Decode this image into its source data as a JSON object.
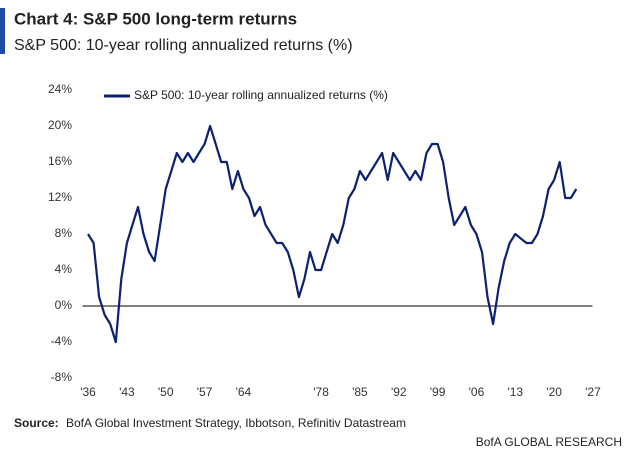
{
  "chart_data": {
    "type": "line",
    "title": "Chart 4: S&P 500 long-term returns",
    "subtitle": "S&P 500: 10-year rolling annualized returns (%)",
    "source_label": "Source:",
    "source": "BofA Global Investment Strategy, Ibbotson, Refinitiv Datastream",
    "footer": "BofA GLOBAL RESEARCH",
    "legend": "upper left",
    "x": [
      1936,
      1937,
      1938,
      1939,
      1940,
      1941,
      1942,
      1943,
      1944,
      1945,
      1946,
      1947,
      1948,
      1949,
      1950,
      1951,
      1952,
      1953,
      1954,
      1955,
      1956,
      1957,
      1958,
      1959,
      1960,
      1961,
      1962,
      1963,
      1964,
      1965,
      1966,
      1967,
      1968,
      1969,
      1970,
      1971,
      1972,
      1973,
      1974,
      1975,
      1976,
      1977,
      1978,
      1979,
      1980,
      1981,
      1982,
      1983,
      1984,
      1985,
      1986,
      1987,
      1988,
      1989,
      1990,
      1991,
      1992,
      1993,
      1994,
      1995,
      1996,
      1997,
      1998,
      1999,
      2000,
      2001,
      2002,
      2003,
      2004,
      2005,
      2006,
      2007,
      2008,
      2009,
      2010,
      2011,
      2012,
      2013,
      2014,
      2015,
      2016,
      2017,
      2018,
      2019,
      2020,
      2021,
      2022,
      2023,
      2024
    ],
    "series": [
      {
        "name": "S&P 500: 10-year rolling annualized returns (%)",
        "color": "#0c2270",
        "values": [
          8,
          7,
          1,
          -1,
          -2,
          -4,
          3,
          7,
          9,
          11,
          8,
          6,
          5,
          9,
          13,
          15,
          17,
          16,
          17,
          16,
          17,
          18,
          20,
          18,
          16,
          16,
          13,
          15,
          13,
          12,
          10,
          11,
          9,
          8,
          7,
          7,
          6,
          4,
          1,
          3,
          6,
          4,
          4,
          6,
          8,
          7,
          9,
          12,
          13,
          15,
          14,
          15,
          16,
          17,
          14,
          17,
          16,
          15,
          14,
          15,
          14,
          17,
          18,
          18,
          16,
          12,
          9,
          10,
          11,
          9,
          8,
          6,
          1,
          -2,
          2,
          5,
          7,
          8,
          7.5,
          7,
          7,
          8,
          10,
          13,
          14,
          16,
          12,
          12,
          13
        ]
      }
    ],
    "xlim": [
      1935,
      2028
    ],
    "xticks": [
      {
        "value": 1936,
        "label": "'36"
      },
      {
        "value": 1943,
        "label": "'43"
      },
      {
        "value": 1950,
        "label": "'50"
      },
      {
        "value": 1957,
        "label": "'57"
      },
      {
        "value": 1964,
        "label": "'64"
      },
      {
        "value": 1978,
        "label": "'78"
      },
      {
        "value": 1985,
        "label": "'85"
      },
      {
        "value": 1992,
        "label": "'92"
      },
      {
        "value": 1999,
        "label": "'99"
      },
      {
        "value": 2006,
        "label": "'06"
      },
      {
        "value": 2013,
        "label": "'13"
      },
      {
        "value": 2020,
        "label": "'20"
      },
      {
        "value": 2027,
        "label": "'27"
      }
    ],
    "ylim": [
      -8,
      24
    ],
    "yticks": [
      {
        "value": -8,
        "label": "-8%"
      },
      {
        "value": -4,
        "label": "-4%"
      },
      {
        "value": 0,
        "label": "0%"
      },
      {
        "value": 4,
        "label": "4%"
      },
      {
        "value": 8,
        "label": "8%"
      },
      {
        "value": 12,
        "label": "12%"
      },
      {
        "value": 16,
        "label": "16%"
      },
      {
        "value": 20,
        "label": "20%"
      },
      {
        "value": 24,
        "label": "24%"
      }
    ],
    "grid": false
  }
}
